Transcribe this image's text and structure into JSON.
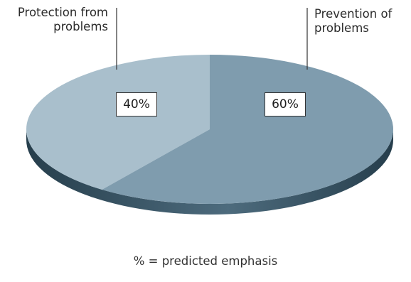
{
  "chart_data": {
    "type": "pie",
    "categories": [
      "Protection from problems",
      "Prevention of problems"
    ],
    "values": [
      40,
      60
    ],
    "value_labels": [
      "40%",
      "60%"
    ],
    "label_lines": [
      [
        "Protection from",
        "problems"
      ],
      [
        "Prevention of",
        "problems"
      ]
    ],
    "footnote": "% = predicted emphasis",
    "colors": {
      "protection_slice": "#a9bfcc",
      "prevention_slice": "#7f9cae",
      "rim_dark": "#263e4c",
      "rim_mid": "#4d6b7d",
      "leader_line": "#333333"
    }
  }
}
